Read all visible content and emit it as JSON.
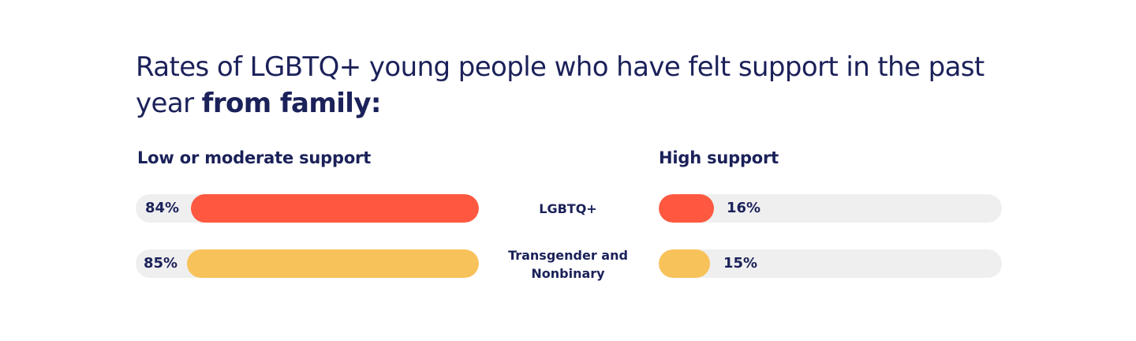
{
  "chart_data": {
    "type": "bar",
    "title_main": "Rates of LGBTQ+ young people who have felt support in the past year ",
    "title_emphasis": "from family:",
    "categories": [
      "LGBTQ+",
      "Transgender and Nonbinary"
    ],
    "series": [
      {
        "name": "Low or moderate support",
        "values": [
          84,
          85
        ],
        "labels": [
          "84%",
          "85%"
        ],
        "colors": [
          "#fe5940",
          "#f8c25a"
        ]
      },
      {
        "name": "High support",
        "values": [
          16,
          15
        ],
        "labels": [
          "16%",
          "15%"
        ],
        "colors": [
          "#fe5940",
          "#f8c25a"
        ]
      }
    ],
    "xlim": [
      0,
      100
    ],
    "track_color": "#efefef",
    "text_color": "#1b2159"
  }
}
